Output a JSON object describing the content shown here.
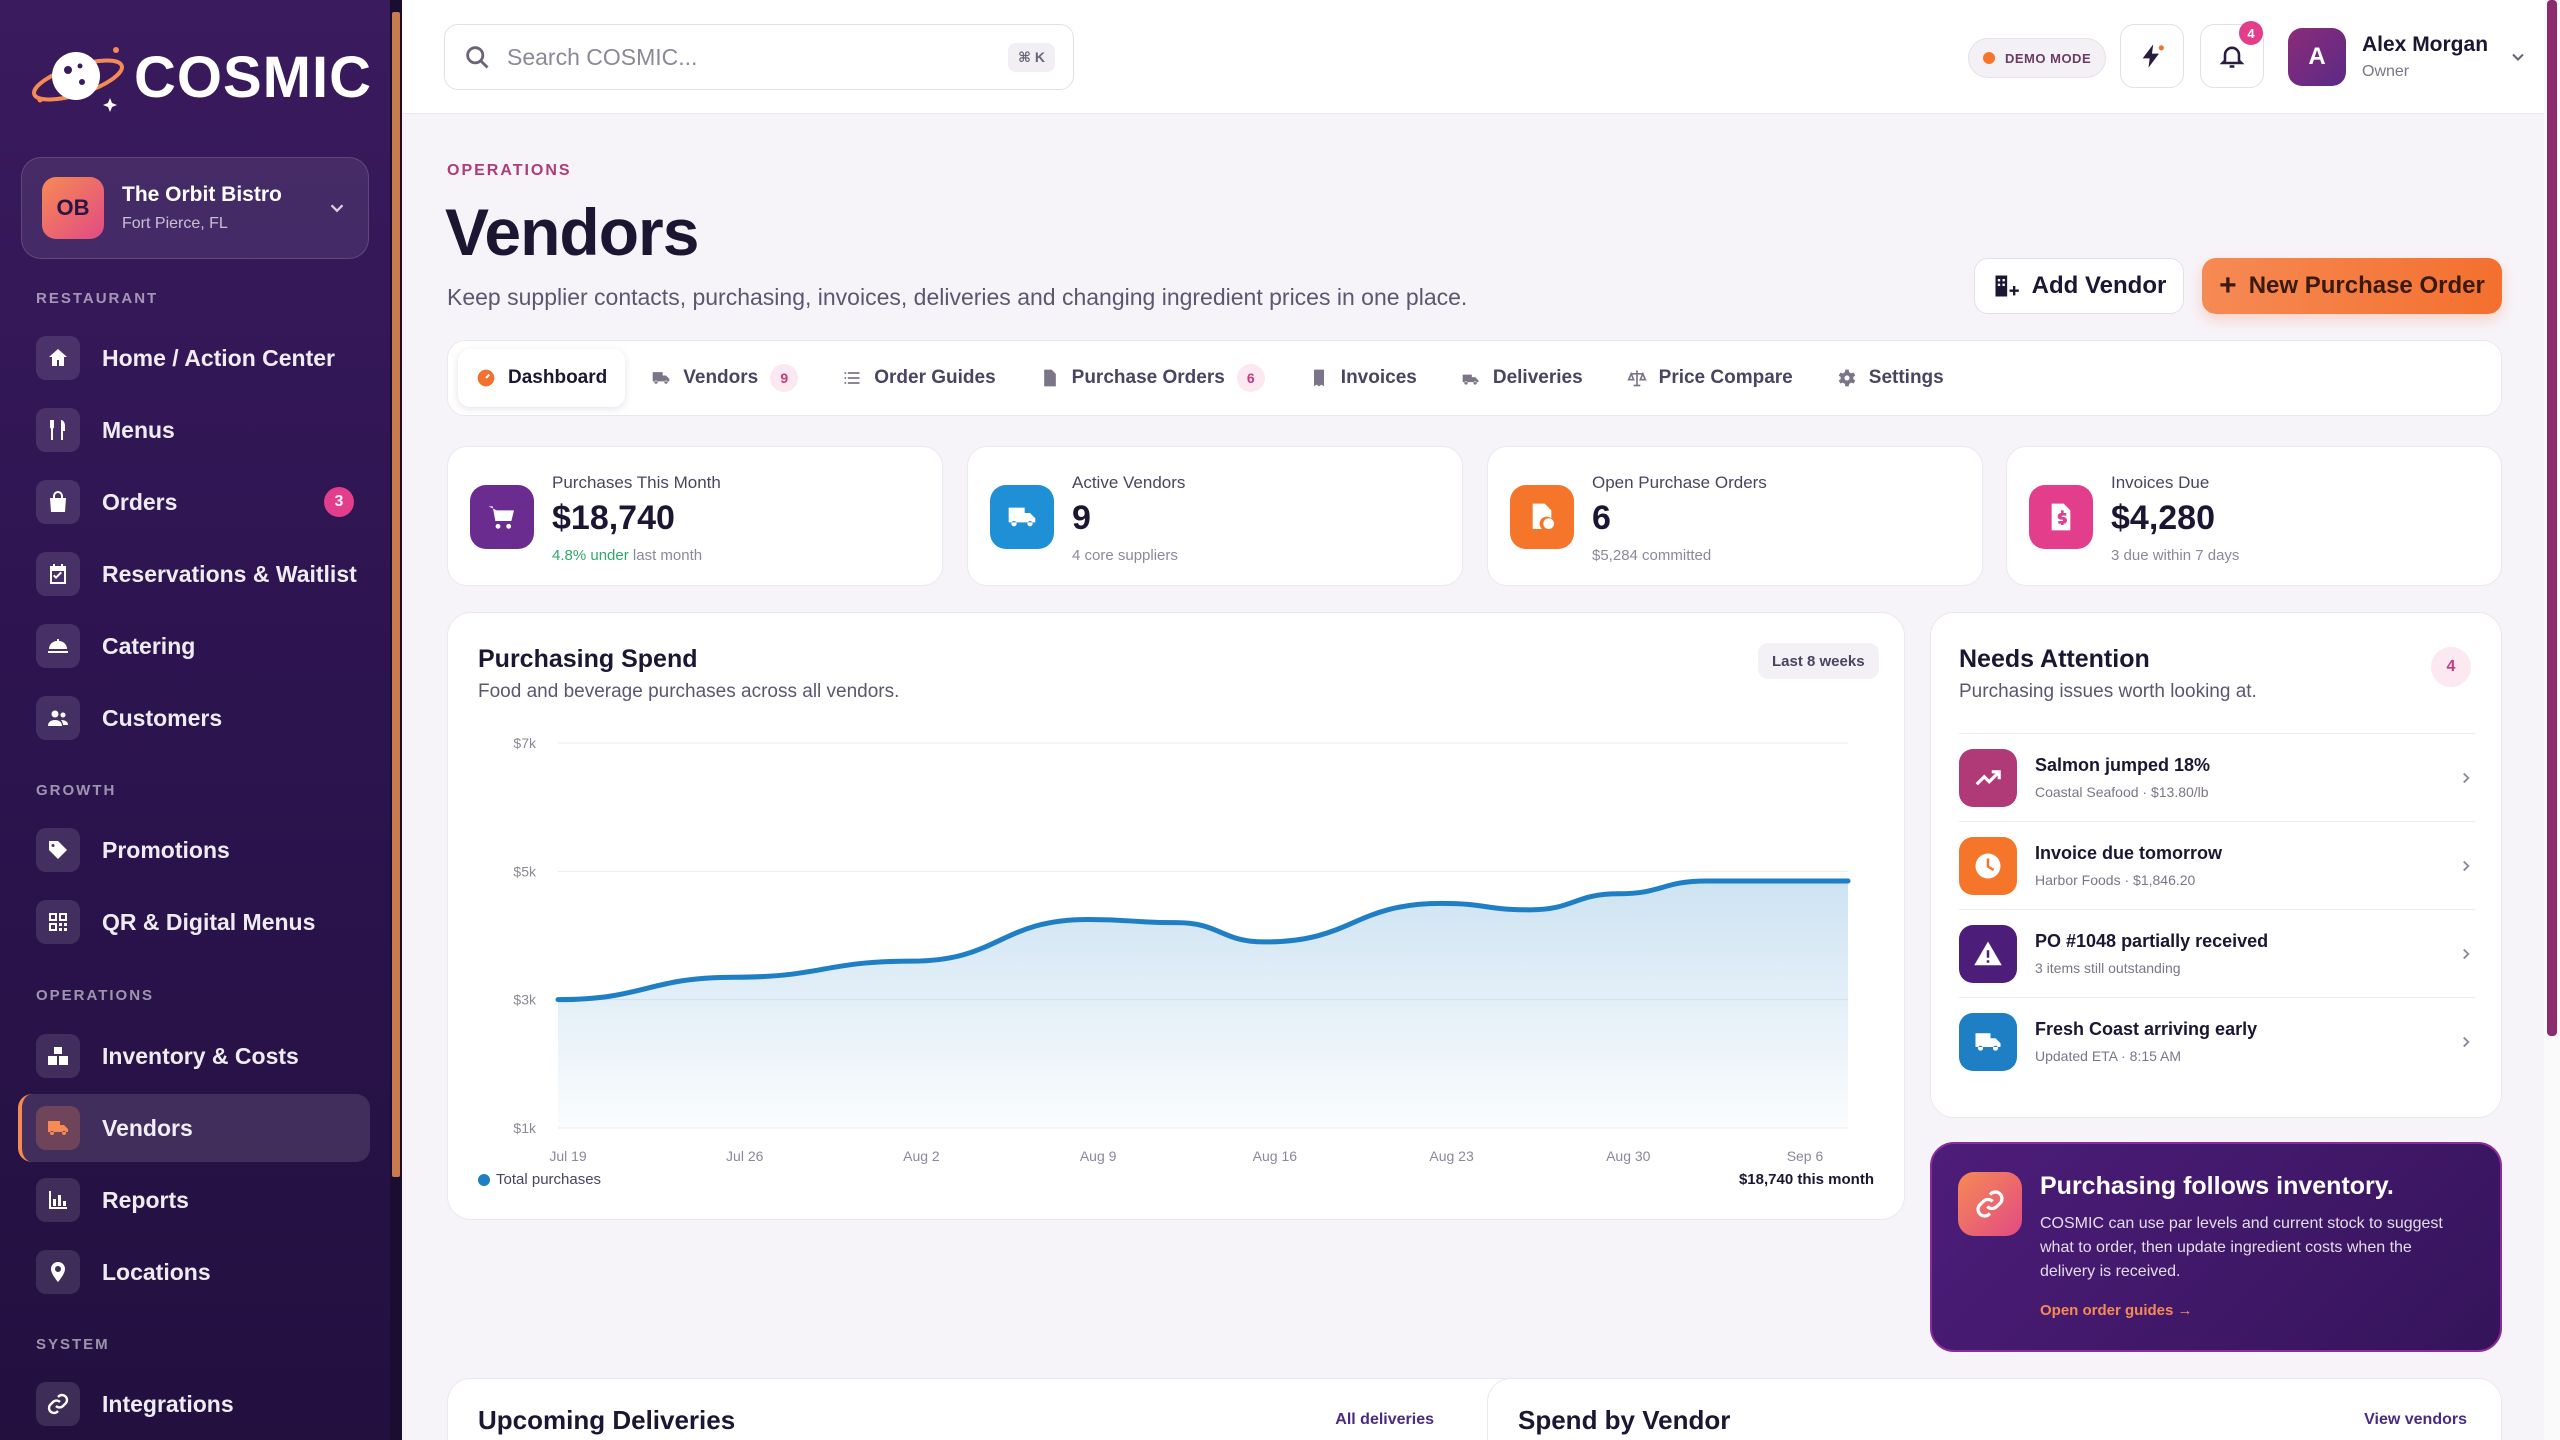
{
  "brand": {
    "name": "COSMIC"
  },
  "restaurant": {
    "initials": "OB",
    "name": "The Orbit Bistro",
    "location": "Fort Pierce, FL"
  },
  "nav": {
    "sections": [
      {
        "label": "RESTAURANT"
      },
      {
        "label": "GROWTH"
      },
      {
        "label": "OPERATIONS"
      },
      {
        "label": "SYSTEM"
      }
    ],
    "items": [
      {
        "label": "Home / Action Center",
        "icon": "home-icon"
      },
      {
        "label": "Menus",
        "icon": "utensils-icon"
      },
      {
        "label": "Orders",
        "icon": "bag-icon",
        "badge": "3"
      },
      {
        "label": "Reservations & Waitlist",
        "icon": "calendar-check-icon"
      },
      {
        "label": "Catering",
        "icon": "cloche-icon"
      },
      {
        "label": "Customers",
        "icon": "users-icon"
      },
      {
        "label": "Promotions",
        "icon": "tag-icon"
      },
      {
        "label": "QR & Digital Menus",
        "icon": "qr-icon"
      },
      {
        "label": "Inventory & Costs",
        "icon": "boxes-icon"
      },
      {
        "label": "Vendors",
        "icon": "truck-icon",
        "active": true
      },
      {
        "label": "Reports",
        "icon": "bar-chart-icon"
      },
      {
        "label": "Locations",
        "icon": "pin-icon"
      },
      {
        "label": "Integrations",
        "icon": "link-icon"
      }
    ]
  },
  "topbar": {
    "search_placeholder": "Search COSMIC...",
    "search_shortcut": "⌘ K",
    "demo_label": "DEMO MODE",
    "notifications_count": "4",
    "user": {
      "initial": "A",
      "name": "Alex Morgan",
      "role": "Owner"
    }
  },
  "page": {
    "eyebrow": "OPERATIONS",
    "title": "Vendors",
    "subtitle": "Keep supplier contacts, purchasing, invoices, deliveries and changing ingredient prices in one place.",
    "add_vendor_label": "Add Vendor",
    "new_po_label": "New Purchase Order"
  },
  "tabs": [
    {
      "label": "Dashboard",
      "icon": "dashboard-icon",
      "active": true
    },
    {
      "label": "Vendors",
      "icon": "truck-icon",
      "count": "9"
    },
    {
      "label": "Order Guides",
      "icon": "list-icon"
    },
    {
      "label": "Purchase Orders",
      "icon": "file-icon",
      "count": "6"
    },
    {
      "label": "Invoices",
      "icon": "receipt-icon"
    },
    {
      "label": "Deliveries",
      "icon": "delivery-icon"
    },
    {
      "label": "Price Compare",
      "icon": "scale-icon"
    },
    {
      "label": "Settings",
      "icon": "gear-icon"
    }
  ],
  "stats": [
    {
      "label": "Purchases This Month",
      "value": "$18,740",
      "foot_highlight": "4.8% under",
      "foot": " last month",
      "color": "#6a2d8f",
      "icon": "cart-icon"
    },
    {
      "label": "Active Vendors",
      "value": "9",
      "foot_highlight": "",
      "foot": "4 core suppliers",
      "color": "#1f8fd6",
      "icon": "truck-icon"
    },
    {
      "label": "Open Purchase Orders",
      "value": "6",
      "foot_highlight": "",
      "foot": "$5,284 committed",
      "color": "#f5762a",
      "icon": "document-clock-icon"
    },
    {
      "label": "Invoices Due",
      "value": "$4,280",
      "foot_highlight": "",
      "foot": "3 due within 7 days",
      "color": "#e23e8c",
      "icon": "invoice-dollar-icon"
    }
  ],
  "spend_card": {
    "title": "Purchasing Spend",
    "subtitle": "Food and beverage purchases across all vendors.",
    "range_label": "Last 8 weeks",
    "legend_label": "Total purchases",
    "total_label": "$18,740 this month"
  },
  "chart_data": {
    "type": "area",
    "title": "Purchasing Spend",
    "y_tick_labels": [
      "$7k",
      "$5k",
      "$3k",
      "$1k"
    ],
    "y_ticks": [
      7000,
      5000,
      3000,
      1000
    ],
    "ylim": [
      1000,
      7000
    ],
    "x_tick_labels": [
      "Jul 19",
      "Jul 26",
      "Aug 2",
      "Aug 9",
      "Aug 16",
      "Aug 23",
      "Aug 30",
      "Sep 6"
    ],
    "x": [
      0,
      1,
      2,
      3,
      4,
      5,
      6,
      7
    ],
    "series": [
      {
        "name": "Total purchases",
        "color": "#1f7fc4",
        "x": [
          0,
          1,
          2,
          3,
          3.5,
          4,
          5,
          5.5,
          6,
          6.5,
          7.3
        ],
        "values": [
          3000,
          3350,
          3600,
          4250,
          4200,
          3900,
          4500,
          4400,
          4650,
          4850,
          4850
        ]
      }
    ],
    "grid": true
  },
  "attention": {
    "title": "Needs Attention",
    "subtitle": "Purchasing issues worth looking at.",
    "count": "4",
    "items": [
      {
        "title": "Salmon jumped 18%",
        "meta": "Coastal Seafood · $13.80/lb",
        "color": "#b03a78",
        "icon": "trending-up-icon"
      },
      {
        "title": "Invoice due tomorrow",
        "meta": "Harbor Foods · $1,846.20",
        "color": "#f5762a",
        "icon": "clock-icon"
      },
      {
        "title": "PO #1048 partially received",
        "meta": "3 items still outstanding",
        "color": "#4d1d7a",
        "icon": "warning-icon"
      },
      {
        "title": "Fresh Coast arriving early",
        "meta": "Updated ETA · 8:15 AM",
        "color": "#1f7fc4",
        "icon": "truck-icon"
      }
    ]
  },
  "promo": {
    "title": "Purchasing follows inventory.",
    "body": "COSMIC can use par levels and current stock to suggest what to order, then update ingredient costs when the delivery is received.",
    "link": "Open order guides →"
  },
  "bottom": {
    "deliveries_title": "Upcoming Deliveries",
    "deliveries_link": "All deliveries",
    "vendor_spend_title": "Spend by Vendor",
    "vendor_spend_link": "View vendors"
  }
}
